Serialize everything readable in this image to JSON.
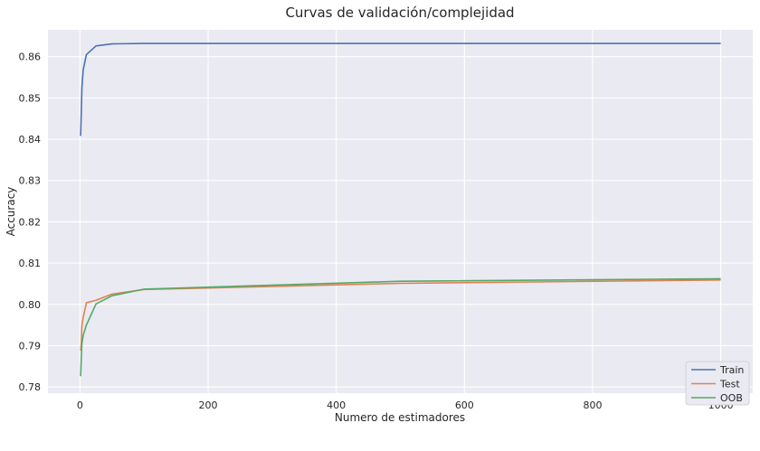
{
  "chart_data": {
    "type": "line",
    "title": "Curvas de validación/complejidad",
    "xlabel": "Numero de estimadores",
    "ylabel": "Accuracy",
    "xlim": [
      -50,
      1050
    ],
    "ylim": [
      0.7785,
      0.8665
    ],
    "xticks": [
      0,
      200,
      400,
      600,
      800,
      1000
    ],
    "yticks": [
      0.78,
      0.79,
      0.8,
      0.81,
      0.82,
      0.83,
      0.84,
      0.85,
      0.86
    ],
    "ytick_labels": [
      "0.78",
      "0.79",
      "0.80",
      "0.81",
      "0.82",
      "0.83",
      "0.84",
      "0.85",
      "0.86"
    ],
    "grid": true,
    "legend_position": "lower-right",
    "series": [
      {
        "name": "Train",
        "color": "#4c72b0",
        "x": [
          1,
          2,
          3,
          5,
          10,
          25,
          50,
          100,
          500,
          1000
        ],
        "y": [
          0.8408,
          0.8462,
          0.8525,
          0.8568,
          0.8605,
          0.8626,
          0.8631,
          0.8632,
          0.8632,
          0.8632
        ]
      },
      {
        "name": "Test",
        "color": "#dd8452",
        "x": [
          1,
          2,
          3,
          5,
          10,
          25,
          50,
          100,
          500,
          1000
        ],
        "y": [
          0.7888,
          0.7905,
          0.7948,
          0.7968,
          0.8004,
          0.801,
          0.8025,
          0.8036,
          0.8051,
          0.8059
        ]
      },
      {
        "name": "OOB",
        "color": "#55a868",
        "x": [
          1,
          2,
          3,
          5,
          10,
          25,
          50,
          100,
          500,
          1000
        ],
        "y": [
          0.7826,
          0.787,
          0.7905,
          0.7925,
          0.795,
          0.8001,
          0.8021,
          0.8037,
          0.8056,
          0.8062
        ]
      }
    ]
  }
}
